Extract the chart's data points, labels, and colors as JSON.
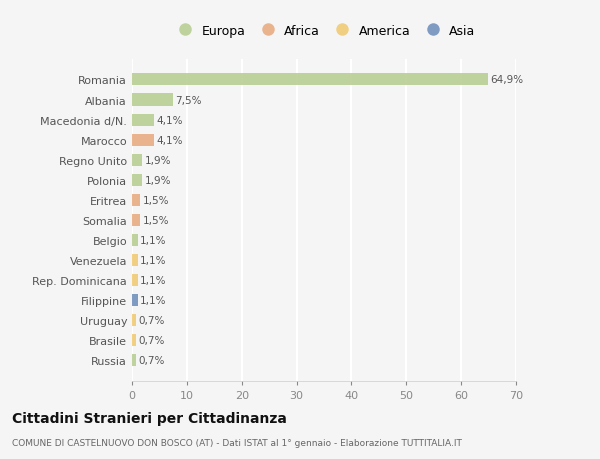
{
  "title": "Cittadini Stranieri per Cittadinanza",
  "subtitle": "COMUNE DI CASTELNUOVO DON BOSCO (AT) - Dati ISTAT al 1° gennaio - Elaborazione TUTTITALIA.IT",
  "legend_labels": [
    "Europa",
    "Africa",
    "America",
    "Asia"
  ],
  "legend_colors": [
    "#b5cc8e",
    "#e8a87c",
    "#f0c96e",
    "#6b8cba"
  ],
  "categories": [
    "Romania",
    "Albania",
    "Macedonia d/N.",
    "Marocco",
    "Regno Unito",
    "Polonia",
    "Eritrea",
    "Somalia",
    "Belgio",
    "Venezuela",
    "Rep. Dominicana",
    "Filippine",
    "Uruguay",
    "Brasile",
    "Russia"
  ],
  "values": [
    64.9,
    7.5,
    4.1,
    4.1,
    1.9,
    1.9,
    1.5,
    1.5,
    1.1,
    1.1,
    1.1,
    1.1,
    0.7,
    0.7,
    0.7
  ],
  "bar_colors": [
    "#b5cc8e",
    "#b5cc8e",
    "#b5cc8e",
    "#e8a87c",
    "#b5cc8e",
    "#b5cc8e",
    "#e8a87c",
    "#e8a87c",
    "#b5cc8e",
    "#f0c96e",
    "#f0c96e",
    "#6b8cba",
    "#f0c96e",
    "#f0c96e",
    "#b5cc8e"
  ],
  "labels": [
    "64,9%",
    "7,5%",
    "4,1%",
    "4,1%",
    "1,9%",
    "1,9%",
    "1,5%",
    "1,5%",
    "1,1%",
    "1,1%",
    "1,1%",
    "1,1%",
    "0,7%",
    "0,7%",
    "0,7%"
  ],
  "xlim": [
    0,
    70
  ],
  "xticks": [
    0,
    10,
    20,
    30,
    40,
    50,
    60,
    70
  ],
  "background_color": "#f5f5f5",
  "grid_color": "#ffffff",
  "bar_alpha": 0.85
}
